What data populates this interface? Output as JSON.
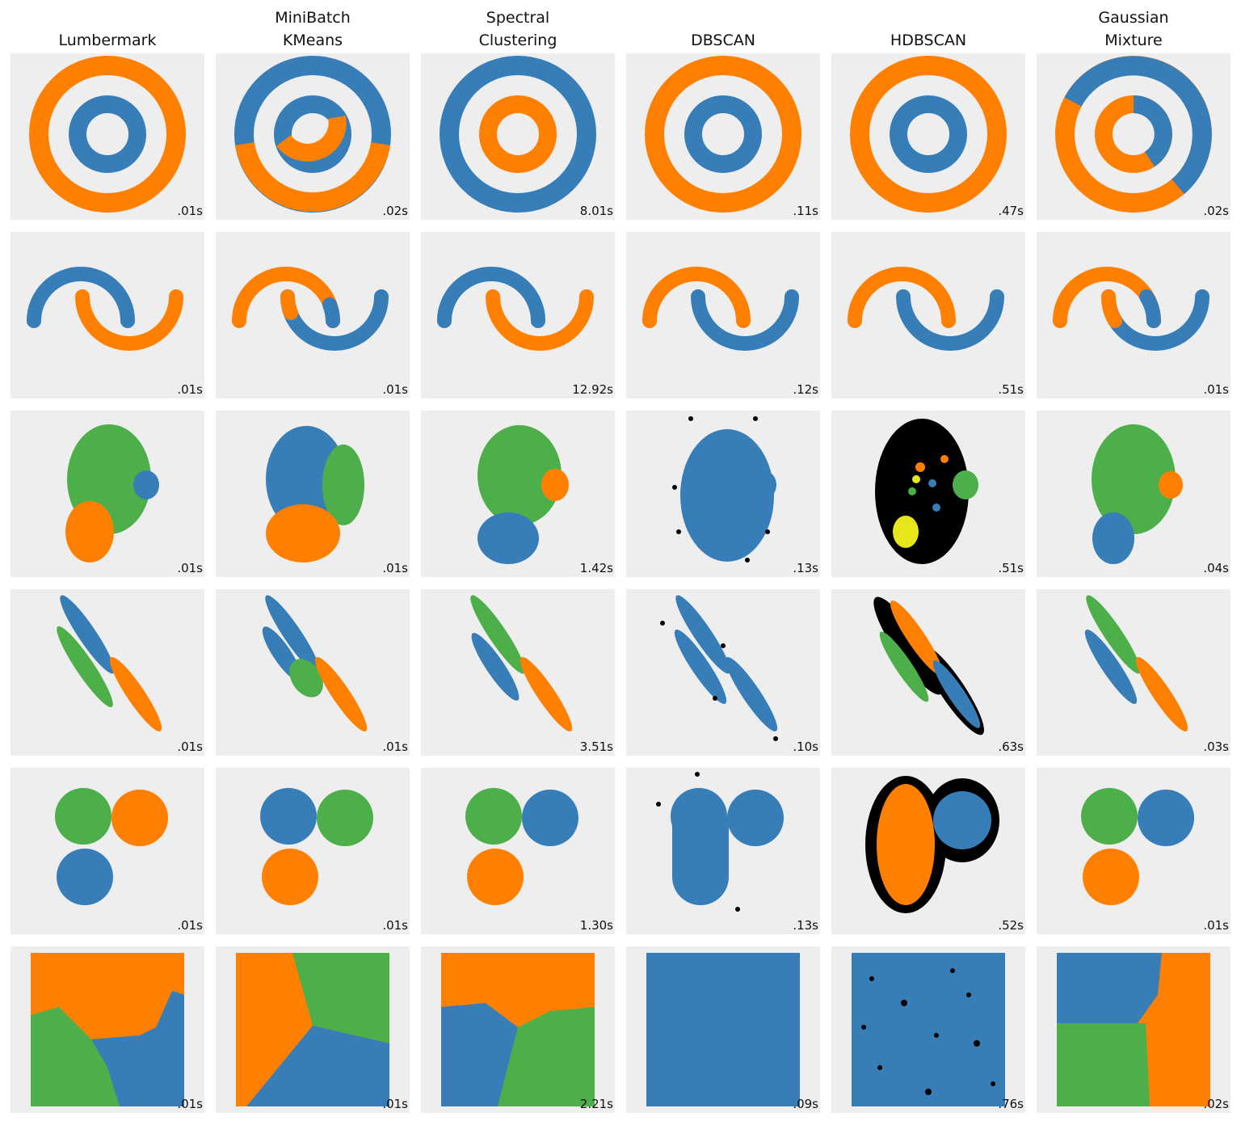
{
  "titles": [
    [
      "Lumbermark"
    ],
    [
      "MiniBatch",
      "KMeans"
    ],
    [
      "Spectral",
      "Clustering"
    ],
    [
      "DBSCAN"
    ],
    [
      "HDBSCAN"
    ],
    [
      "Gaussian",
      "Mixture"
    ]
  ],
  "timings": [
    [
      ".01s",
      ".02s",
      "8.01s",
      ".11s",
      ".47s",
      ".02s"
    ],
    [
      ".01s",
      ".01s",
      "12.92s",
      ".12s",
      ".51s",
      ".01s"
    ],
    [
      ".01s",
      ".01s",
      "1.42s",
      ".13s",
      ".51s",
      ".04s"
    ],
    [
      ".01s",
      ".01s",
      "3.51s",
      ".10s",
      ".63s",
      ".03s"
    ],
    [
      ".01s",
      ".01s",
      "1.30s",
      ".13s",
      ".52s",
      ".01s"
    ],
    [
      ".01s",
      ".01s",
      "2.21s",
      ".09s",
      ".76s",
      ".02s"
    ]
  ]
}
